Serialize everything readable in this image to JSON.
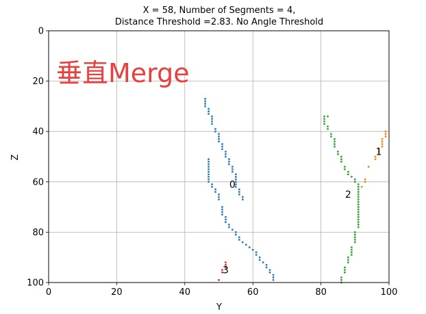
{
  "chart_data": {
    "type": "scatter",
    "title_line1": "X = 58, Number of Segments = 4,",
    "title_line2": "Distance Threshold =2.83. No Angle Threshold",
    "xlabel": "Y",
    "ylabel": "Z",
    "xlim": [
      0,
      100
    ],
    "ylim": [
      100,
      0
    ],
    "x_ticks": [
      "0",
      "20",
      "40",
      "60",
      "80",
      "100"
    ],
    "y_ticks": [
      "0",
      "20",
      "40",
      "60",
      "80",
      "100"
    ],
    "grid": true,
    "overlay_text": "垂直Merge",
    "overlay_color": "#e8403e",
    "series": [
      {
        "label": "0",
        "label_pos": [
          54,
          61
        ],
        "color": "#1f77b4",
        "points": [
          [
            46,
            27
          ],
          [
            46,
            28
          ],
          [
            46,
            29
          ],
          [
            46,
            30
          ],
          [
            47,
            31
          ],
          [
            47,
            32
          ],
          [
            47,
            33
          ],
          [
            48,
            34
          ],
          [
            48,
            35
          ],
          [
            48,
            36
          ],
          [
            48,
            37
          ],
          [
            49,
            39
          ],
          [
            49,
            40
          ],
          [
            50,
            41
          ],
          [
            50,
            42
          ],
          [
            50,
            43
          ],
          [
            50,
            44
          ],
          [
            51,
            45
          ],
          [
            51,
            46
          ],
          [
            51,
            47
          ],
          [
            52,
            48
          ],
          [
            52,
            49
          ],
          [
            52,
            50
          ],
          [
            53,
            51
          ],
          [
            53,
            52
          ],
          [
            53,
            53
          ],
          [
            54,
            54
          ],
          [
            54,
            55
          ],
          [
            54,
            56
          ],
          [
            55,
            57
          ],
          [
            55,
            58
          ],
          [
            55,
            59
          ],
          [
            55,
            60
          ],
          [
            55,
            61
          ],
          [
            55,
            62
          ],
          [
            56,
            63
          ],
          [
            56,
            64
          ],
          [
            56,
            65
          ],
          [
            57,
            66
          ],
          [
            57,
            67
          ],
          [
            47,
            51
          ],
          [
            47,
            52
          ],
          [
            47,
            53
          ],
          [
            47,
            54
          ],
          [
            47,
            55
          ],
          [
            47,
            56
          ],
          [
            47,
            57
          ],
          [
            47,
            58
          ],
          [
            47,
            59
          ],
          [
            47,
            60
          ],
          [
            48,
            61
          ],
          [
            48,
            62
          ],
          [
            49,
            63
          ],
          [
            49,
            64
          ],
          [
            50,
            65
          ],
          [
            50,
            66
          ],
          [
            50,
            67
          ],
          [
            51,
            70
          ],
          [
            51,
            71
          ],
          [
            51,
            72
          ],
          [
            51,
            73
          ],
          [
            52,
            74
          ],
          [
            52,
            75
          ],
          [
            52,
            76
          ],
          [
            53,
            77
          ],
          [
            53,
            78
          ],
          [
            54,
            79
          ],
          [
            55,
            80
          ],
          [
            55,
            81
          ],
          [
            56,
            82
          ],
          [
            56,
            83
          ],
          [
            57,
            84
          ],
          [
            58,
            85
          ],
          [
            59,
            86
          ],
          [
            60,
            87
          ],
          [
            61,
            88
          ],
          [
            61,
            89
          ],
          [
            62,
            90
          ],
          [
            62,
            91
          ],
          [
            63,
            92
          ],
          [
            64,
            93
          ],
          [
            64,
            94
          ],
          [
            65,
            95
          ],
          [
            65,
            96
          ],
          [
            66,
            97
          ],
          [
            66,
            98
          ],
          [
            66,
            99
          ]
        ]
      },
      {
        "label": "1",
        "label_pos": [
          97,
          48
        ],
        "color": "#ff7f0e",
        "points": [
          [
            99,
            40
          ],
          [
            99,
            41
          ],
          [
            99,
            42
          ],
          [
            98,
            43
          ],
          [
            98,
            44
          ],
          [
            98,
            45
          ],
          [
            98,
            46
          ],
          [
            97,
            47
          ],
          [
            97,
            48
          ],
          [
            97,
            49
          ],
          [
            96,
            50
          ],
          [
            96,
            51
          ],
          [
            94,
            54
          ],
          [
            93,
            59
          ],
          [
            93,
            60
          ],
          [
            92,
            62
          ]
        ]
      },
      {
        "label": "2",
        "label_pos": [
          88,
          65
        ],
        "color": "#2ca02c",
        "points": [
          [
            81,
            34
          ],
          [
            82,
            34
          ],
          [
            81,
            35
          ],
          [
            81,
            36
          ],
          [
            81,
            37
          ],
          [
            82,
            38
          ],
          [
            82,
            39
          ],
          [
            83,
            41
          ],
          [
            83,
            42
          ],
          [
            84,
            43
          ],
          [
            84,
            44
          ],
          [
            84,
            45
          ],
          [
            84,
            46
          ],
          [
            85,
            48
          ],
          [
            85,
            49
          ],
          [
            86,
            50
          ],
          [
            86,
            51
          ],
          [
            86,
            52
          ],
          [
            87,
            54
          ],
          [
            87,
            55
          ],
          [
            88,
            56
          ],
          [
            88,
            57
          ],
          [
            89,
            58
          ],
          [
            90,
            59
          ],
          [
            90,
            60
          ],
          [
            91,
            61
          ],
          [
            91,
            62
          ],
          [
            91,
            63
          ],
          [
            91,
            64
          ],
          [
            91,
            65
          ],
          [
            91,
            66
          ],
          [
            91,
            67
          ],
          [
            91,
            68
          ],
          [
            91,
            69
          ],
          [
            91,
            70
          ],
          [
            91,
            71
          ],
          [
            91,
            72
          ],
          [
            91,
            73
          ],
          [
            91,
            74
          ],
          [
            91,
            75
          ],
          [
            91,
            76
          ],
          [
            91,
            77
          ],
          [
            91,
            78
          ],
          [
            90,
            80
          ],
          [
            90,
            81
          ],
          [
            90,
            82
          ],
          [
            90,
            83
          ],
          [
            90,
            84
          ],
          [
            89,
            86
          ],
          [
            89,
            87
          ],
          [
            89,
            88
          ],
          [
            89,
            89
          ],
          [
            88,
            90
          ],
          [
            88,
            91
          ],
          [
            88,
            92
          ],
          [
            87,
            94
          ],
          [
            87,
            95
          ],
          [
            87,
            96
          ],
          [
            86,
            98
          ],
          [
            86,
            99
          ],
          [
            86,
            100
          ]
        ]
      },
      {
        "label": "3",
        "label_pos": [
          52,
          95
        ],
        "color": "#d62728",
        "points": [
          [
            52,
            92
          ],
          [
            52,
            93
          ],
          [
            52,
            94
          ],
          [
            51,
            95
          ],
          [
            51,
            96
          ],
          [
            50,
            99
          ]
        ]
      }
    ]
  }
}
